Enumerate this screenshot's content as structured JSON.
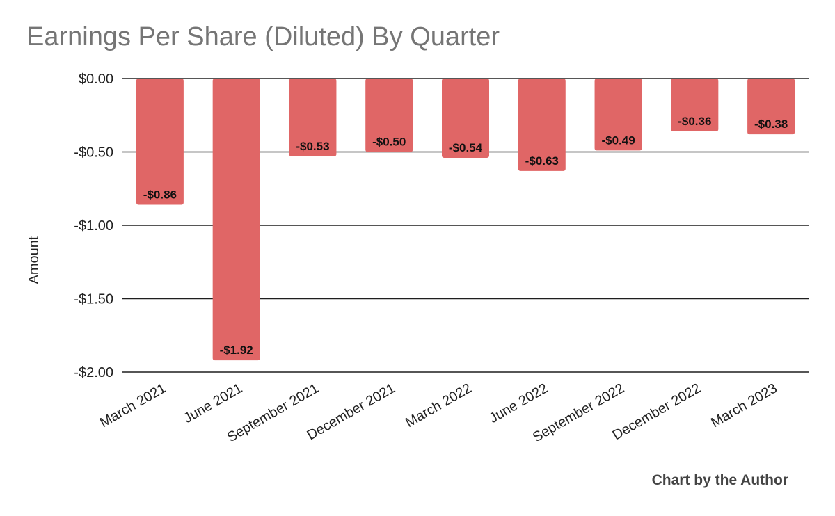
{
  "chart_data": {
    "type": "bar",
    "title": "Earnings Per Share (Diluted) By Quarter",
    "ylabel": "Amount",
    "xlabel": "",
    "categories": [
      "March 2021",
      "June 2021",
      "September 2021",
      "December 2021",
      "March 2022",
      "June 2022",
      "September 2022",
      "December 2022",
      "March 2023"
    ],
    "values": [
      -0.86,
      -1.92,
      -0.53,
      -0.5,
      -0.54,
      -0.63,
      -0.49,
      -0.36,
      -0.38
    ],
    "value_labels": [
      "-$0.86",
      "-$1.92",
      "-$0.53",
      "-$0.50",
      "-$0.54",
      "-$0.63",
      "-$0.49",
      "-$0.36",
      "-$0.38"
    ],
    "yticks": [
      0,
      -0.5,
      -1,
      -1.5,
      -2
    ],
    "ytick_labels": [
      "$0.00",
      "-$0.50",
      "-$1.00",
      "-$1.50",
      "-$2.00"
    ],
    "ylim": [
      -2,
      0
    ],
    "grid": true,
    "legend": "none",
    "bar_color": "#e06666",
    "credit": "Chart by the Author"
  }
}
